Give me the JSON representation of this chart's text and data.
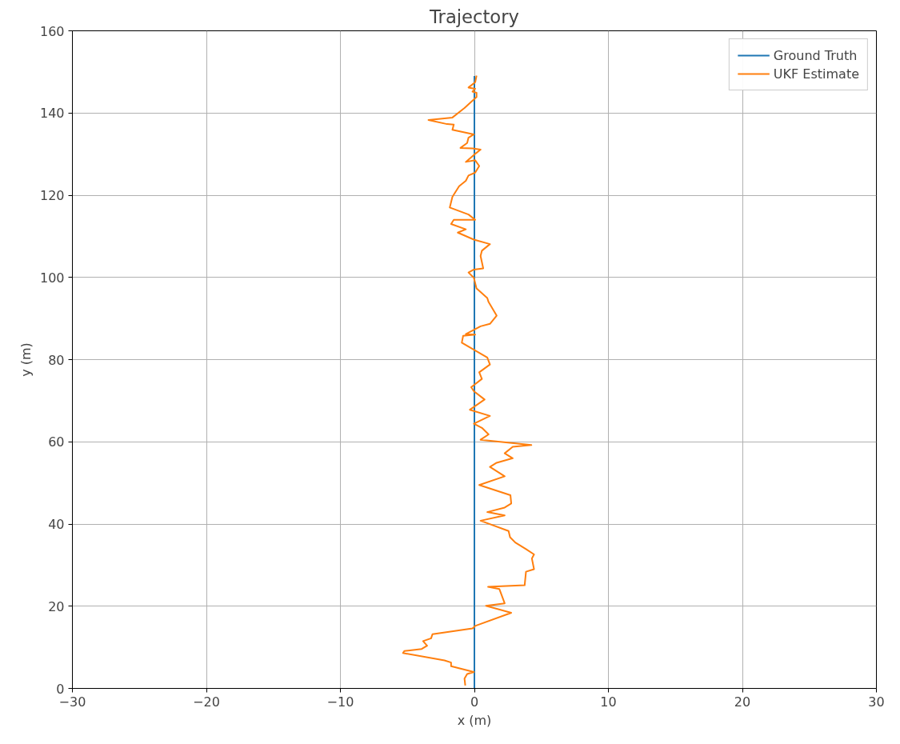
{
  "chart_data": {
    "type": "line",
    "title": "Trajectory",
    "xlabel": "x (m)",
    "ylabel": "y (m)",
    "xlim": [
      -30,
      30
    ],
    "ylim": [
      0,
      160
    ],
    "xticks": [
      -30,
      -20,
      -10,
      0,
      10,
      20,
      30
    ],
    "yticks": [
      0,
      20,
      40,
      60,
      80,
      100,
      120,
      140,
      160
    ],
    "grid": true,
    "legend": "top right",
    "series": [
      {
        "name": "Ground Truth",
        "color": "#1f77b4",
        "x": [
          0,
          0
        ],
        "values": [
          0,
          149
        ]
      },
      {
        "name": "UKF Estimate",
        "color": "#ff7f0e",
        "x": [
          -0.68,
          -0.74,
          -0.54,
          -0.04,
          -1.74,
          -1.74,
          -2.23,
          -5.33,
          -5.23,
          -3.93,
          -3.53,
          -3.83,
          -3.23,
          -3.13,
          -0.14,
          0.06,
          2.75,
          0.86,
          2.26,
          1.86,
          1.02,
          3.75,
          3.85,
          4.45,
          4.29,
          4.45,
          3.85,
          3.05,
          2.66,
          2.55,
          0.46,
          2.26,
          0.96,
          2.26,
          2.75,
          2.69,
          0.36,
          2.26,
          1.16,
          1.66,
          2.86,
          2.26,
          2.86,
          4.25,
          0.46,
          1.06,
          0.56,
          -0.04,
          1.16,
          -0.34,
          0.76,
          -0.04,
          -0.24,
          0.56,
          0.36,
          1.16,
          0.96,
          -0.94,
          -0.84,
          0.06,
          -0.64,
          0.46,
          1.16,
          1.66,
          1.06,
          0.96,
          0.16,
          -0.04,
          -0.44,
          -0.04,
          0.66,
          0.46,
          0.56,
          1.16,
          -0.04,
          -1.24,
          -0.64,
          -1.74,
          -1.54,
          0.06,
          -0.44,
          -1.84,
          -1.64,
          -1.14,
          -0.64,
          -0.44,
          0.06,
          0.36,
          0.06,
          -0.64,
          -0.04,
          0.46,
          -0.14,
          -1.04,
          -0.54,
          -0.44,
          -0.04,
          -1.64,
          -1.54,
          -2.04,
          -3.43,
          -1.64,
          -0.74,
          0.16,
          0.16,
          -0.14,
          0.06,
          -0.44,
          0.06,
          0.16
        ],
        "values": [
          0.7,
          2.4,
          3.5,
          4.0,
          5.4,
          6.3,
          6.8,
          8.6,
          9.1,
          9.6,
          10.4,
          11.5,
          12.2,
          13.2,
          14.6,
          15.2,
          18.4,
          20.1,
          20.7,
          24.2,
          24.7,
          25.1,
          28.4,
          29.0,
          31.6,
          32.6,
          33.9,
          35.5,
          36.8,
          38.3,
          40.8,
          42.1,
          42.9,
          44.0,
          45.0,
          47.0,
          49.5,
          51.6,
          53.9,
          54.9,
          56.0,
          57.2,
          58.8,
          59.2,
          60.5,
          61.8,
          63.4,
          64.4,
          66.3,
          67.8,
          70.3,
          72.3,
          73.3,
          75.3,
          76.9,
          78.8,
          80.5,
          84.1,
          85.8,
          86.1,
          86.2,
          88.1,
          88.7,
          90.7,
          94.0,
          95.0,
          97.3,
          99.9,
          101.2,
          101.9,
          102.2,
          105.2,
          106.5,
          108.1,
          109.2,
          110.9,
          111.7,
          113.0,
          114.0,
          114.0,
          115.3,
          117.0,
          119.6,
          122.2,
          123.5,
          124.8,
          125.5,
          127.1,
          128.5,
          128.1,
          129.8,
          131.1,
          131.4,
          131.5,
          132.7,
          134.0,
          134.8,
          135.9,
          137.2,
          137.3,
          138.3,
          138.9,
          141.2,
          143.9,
          144.9,
          145.2,
          145.9,
          146.2,
          147.5,
          149.1
        ]
      }
    ]
  }
}
